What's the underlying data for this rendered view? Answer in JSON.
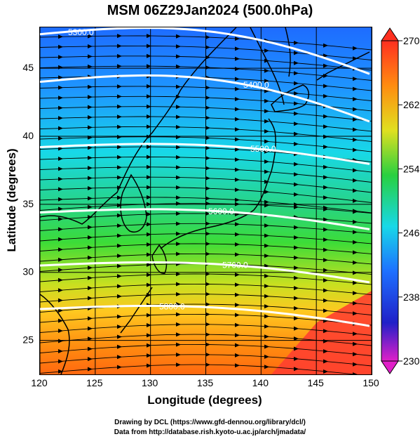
{
  "title": "MSM 06Z29Jan2024 (500.0hPa)",
  "xlabel": "Longitude (degrees)",
  "ylabel": "Latitude  (degrees)",
  "x_ticks": [
    "120",
    "125",
    "130",
    "135",
    "140",
    "145",
    "150"
  ],
  "y_ticks": [
    "25",
    "30",
    "35",
    "40",
    "45"
  ],
  "colorbar": {
    "ticks": [
      "270",
      "262",
      "254",
      "246",
      "238",
      "230"
    ],
    "min": 230,
    "max": 270,
    "colors": [
      "#e020c8",
      "#2020c8",
      "#1e70ff",
      "#18d8e8",
      "#28d040",
      "#e0e020",
      "#ff8c10",
      "#ff3020"
    ]
  },
  "contours": [
    {
      "label": "5300.0",
      "lat": 47.5
    },
    {
      "label": "5400.0",
      "lat": 44.0
    },
    {
      "label": "5500.0",
      "lat": 39.2
    },
    {
      "label": "5600.0",
      "lat": 34.4
    },
    {
      "label": "5700.0",
      "lat": 30.5
    },
    {
      "label": "5800.0",
      "lat": 27.3
    }
  ],
  "credits": {
    "line1": "Drawing by DCL (https://www.gfd-dennou.org/library/dcl/)",
    "line2": "Data from http://database.rish.kyoto-u.ac.jp/arch/jmadata/"
  },
  "chart_data": {
    "type": "heatmap",
    "x_range": [
      120,
      150
    ],
    "y_range": [
      22.5,
      48
    ],
    "field_range": [
      230,
      270
    ],
    "contour_levels": [
      5300,
      5400,
      5500,
      5600,
      5700,
      5800
    ],
    "wind": "vectors (streamline arrows)"
  }
}
